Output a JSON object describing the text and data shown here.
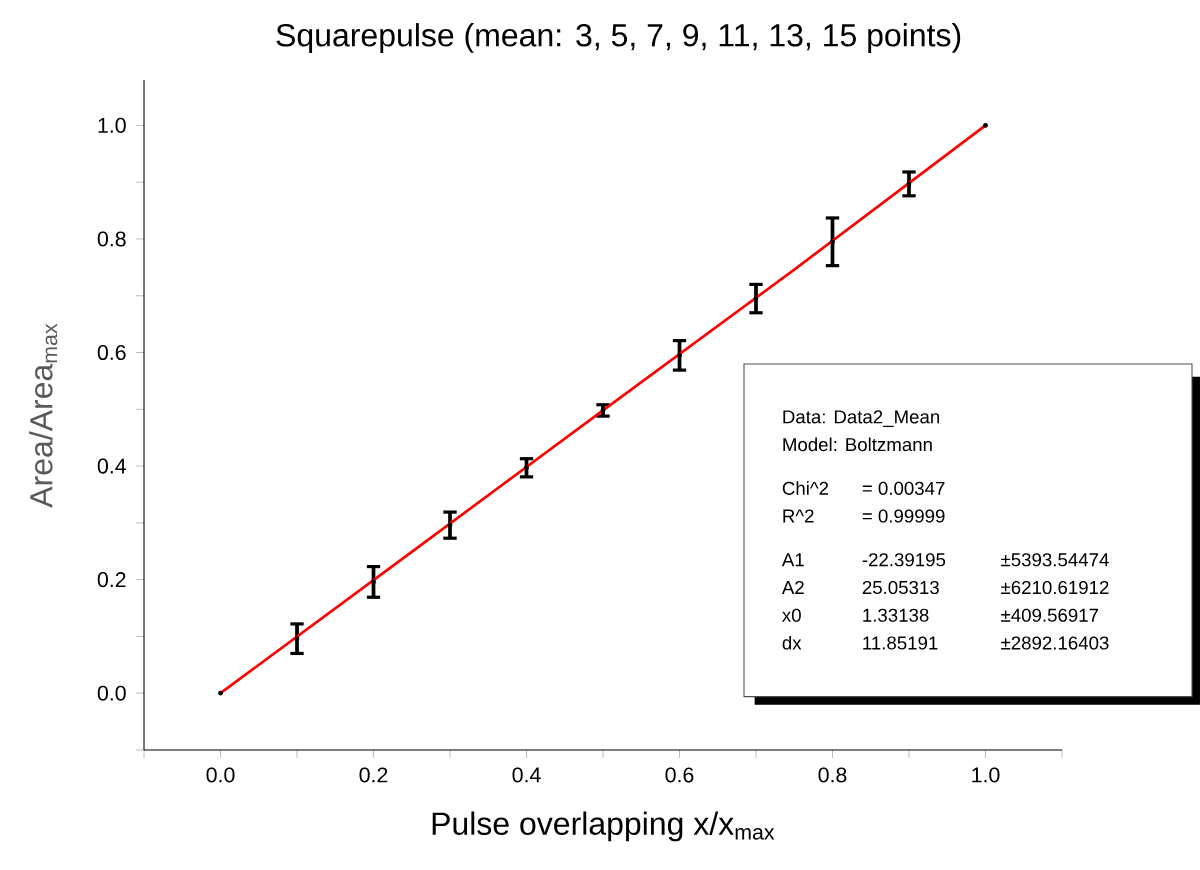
{
  "chart_data": {
    "type": "scatter",
    "title": "Squarepulse (mean: 3, 5, 7, 9, 11, 13, 15 points)",
    "xlabel": "Pulse overlapping x/x$_{max}$",
    "ylabel": "Area/Area$_{max}$",
    "xlim": [
      -0.1,
      1.1
    ],
    "ylim": [
      -0.1,
      1.08
    ],
    "xticks": [
      {
        "value": -0.1,
        "label": null
      },
      {
        "value": 0,
        "label": "0.0"
      },
      {
        "value": 0.1,
        "label": null
      },
      0.2,
      {
        "value": 0.3,
        "label": null
      },
      0.4,
      {
        "value": 0.5,
        "label": null
      },
      0.6,
      {
        "value": 0.7,
        "label": null
      },
      0.8,
      {
        "value": 0.9,
        "label": null
      },
      {
        "value": 1,
        "label": "1.0"
      },
      {
        "value": 1.1,
        "label": null
      }
    ],
    "yticks": [
      {
        "value": -0.1,
        "label": null
      },
      {
        "value": 0,
        "label": "0.0"
      },
      {
        "value": 0.1,
        "label": null
      },
      0.2,
      {
        "value": 0.3,
        "label": null
      },
      0.4,
      {
        "value": 0.5,
        "label": null
      },
      0.6,
      {
        "value": 0.7,
        "label": null
      },
      0.8,
      {
        "value": 0.9,
        "label": null
      },
      {
        "value": 1,
        "label": "1.0"
      }
    ],
    "grid": false,
    "marker": "circle",
    "series": [
      {
        "type": "scatter",
        "color": "#000000",
        "x": [
          0,
          0.1,
          0.2,
          0.3,
          0.4,
          0.5,
          0.6,
          0.7,
          0.8,
          0.9,
          1.0
        ],
        "values": [
          0,
          0.096,
          0.196,
          0.296,
          0.397,
          0.498,
          0.595,
          0.695,
          0.795,
          0.897,
          1.0
        ],
        "errors": [
          null,
          0.026,
          0.027,
          0.023,
          0.016,
          0.01,
          0.026,
          0.025,
          0.042,
          0.021,
          null
        ]
      },
      {
        "type": "line",
        "marker": "none",
        "color": "#ff0000",
        "line_style": "solid",
        "x": [
          0,
          0.25,
          0.5,
          0.75,
          1.0
        ],
        "values": [
          0,
          0.249,
          0.498,
          0.746,
          1.0
        ]
      }
    ],
    "annotations": [
      "Data: Data2_Mean",
      "Model: Boltzmann",
      "Chi^2",
      "= 0.00347",
      "R^2",
      "= 0.99999",
      "A1",
      "-22.39195",
      "±5393.54474",
      "A2",
      "25.05313",
      "±6210.61912",
      "x0",
      "1.33138",
      "±409.56917",
      "dx",
      "11.85191",
      "±2892.16403"
    ]
  }
}
